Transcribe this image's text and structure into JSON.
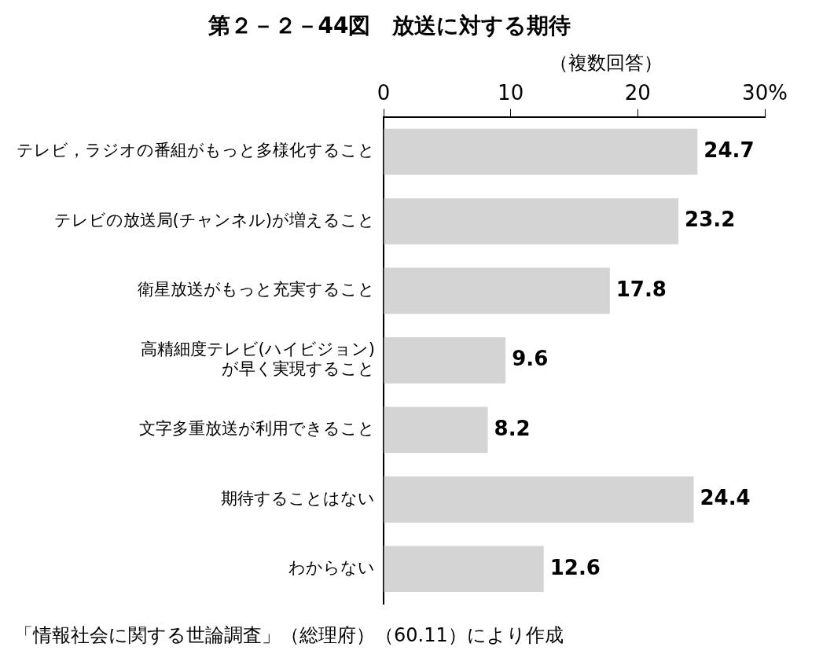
{
  "chart_data": {
    "type": "bar",
    "orientation": "horizontal",
    "title": "第２－２－44図　放送に対する期待",
    "subtitle": "（複数回答）",
    "categories": [
      "テレビ，ラジオの番組がもっと多様化すること",
      "テレビの放送局(チャンネル)が増えること",
      "衛星放送がもっと充実すること",
      "高精細度テレビ(ハイビジョン)\nが早く実現すること",
      "文字多重放送が利用できること",
      "期待することはない",
      "わからない"
    ],
    "values": [
      24.7,
      23.2,
      17.8,
      9.6,
      8.2,
      24.4,
      12.6
    ],
    "color": "#d4d4d4",
    "xlim": [
      0,
      30
    ],
    "xticks": [
      0,
      10,
      20,
      {
        "value": 30,
        "label": "30%"
      }
    ],
    "data_labels": true,
    "legend": false,
    "annotations": [
      "「情報社会に関する世論調査」（総理府）（60.11）により作成"
    ]
  }
}
